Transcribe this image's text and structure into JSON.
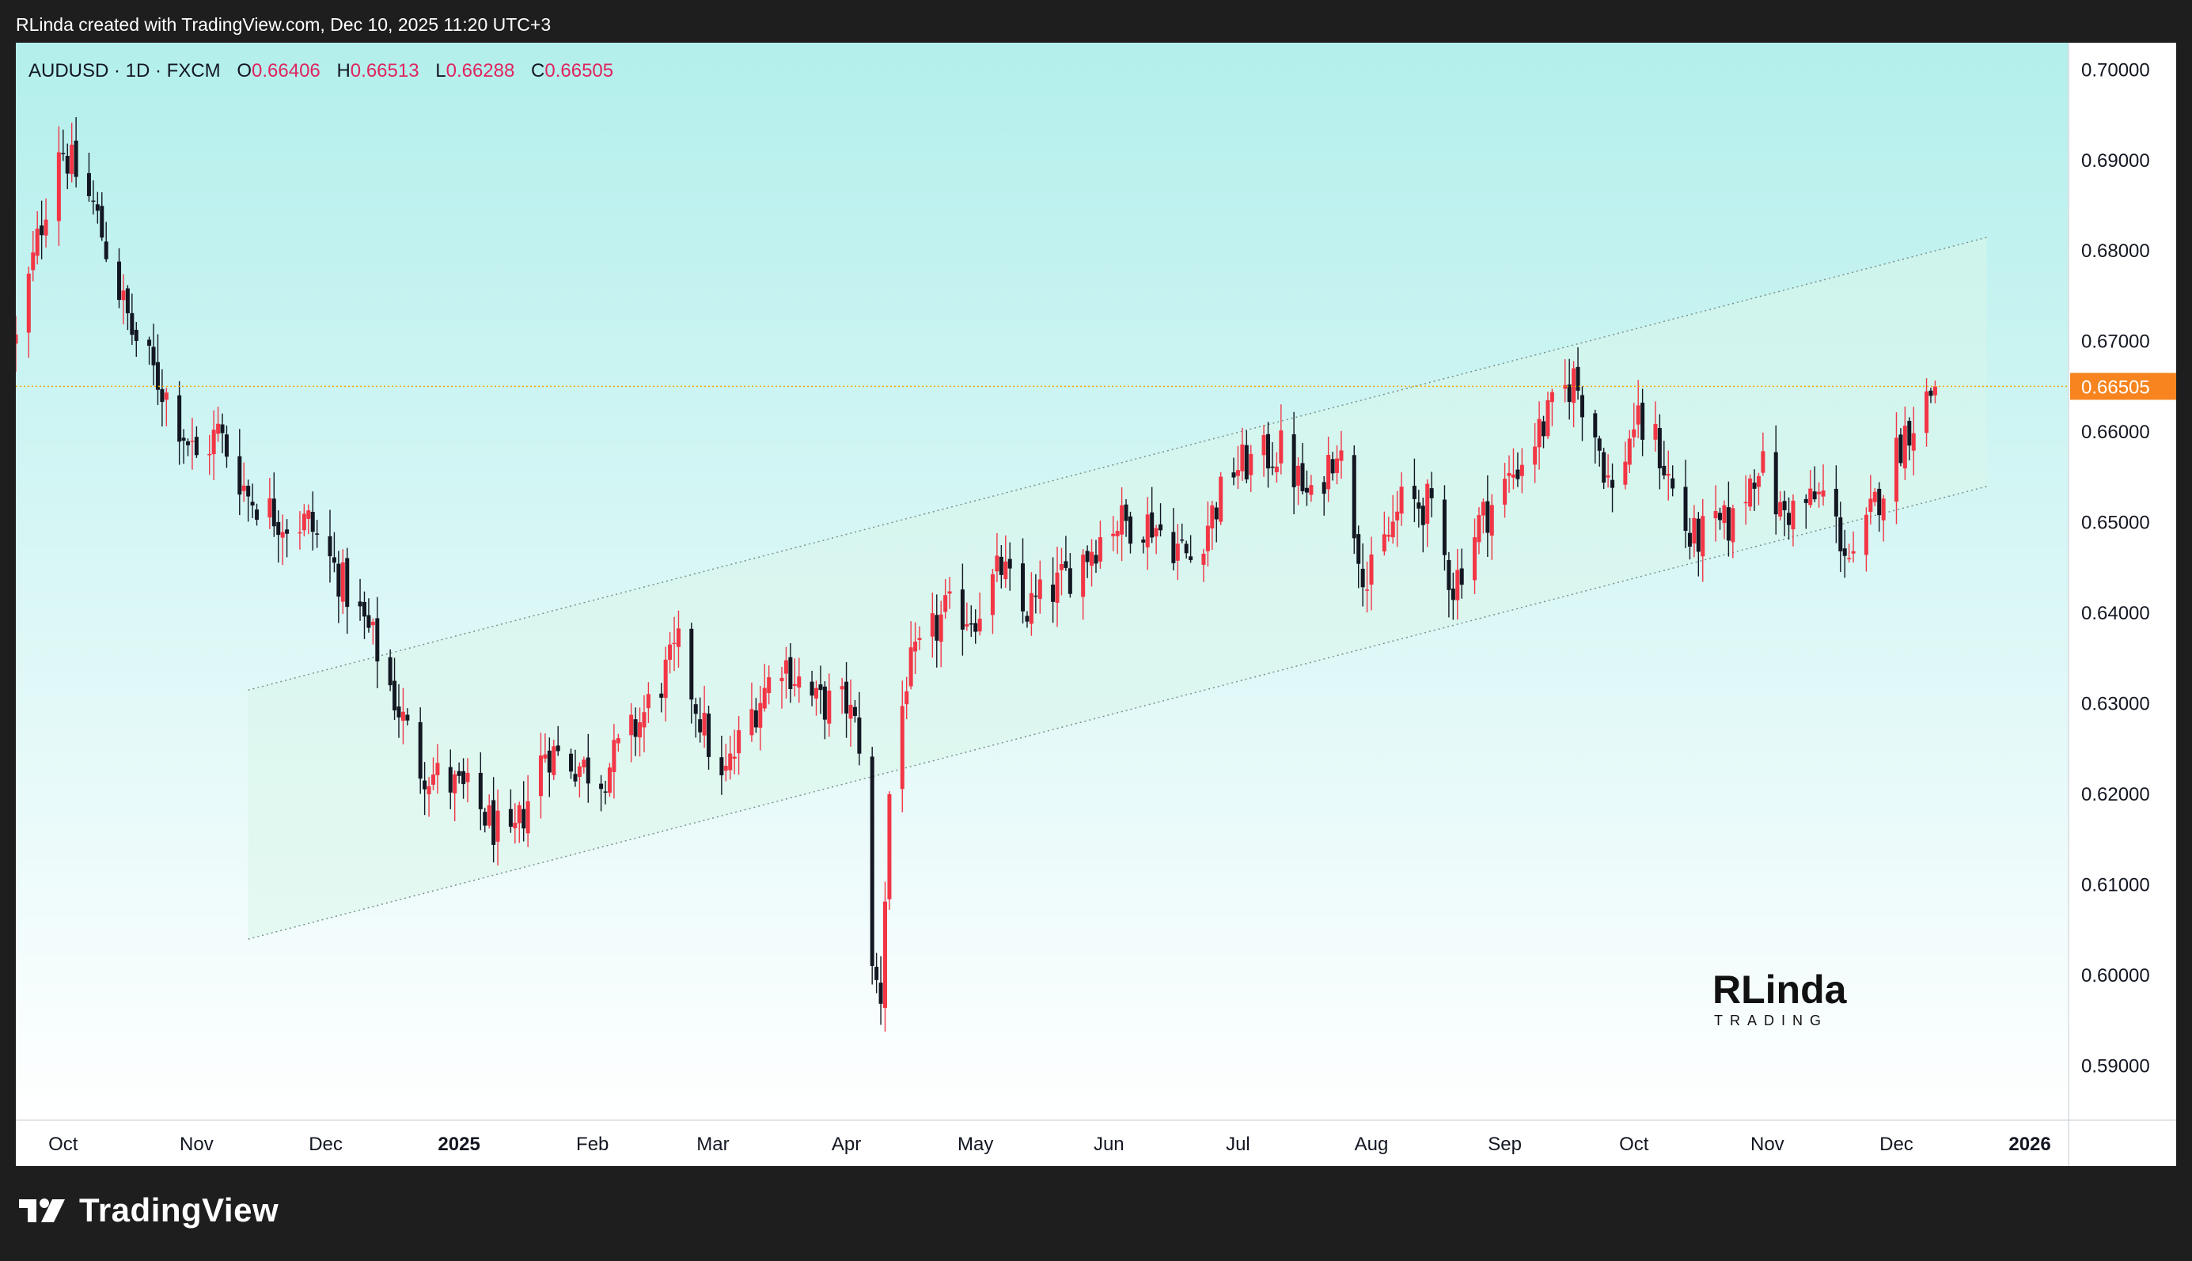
{
  "header": {
    "caption": "RLinda created with TradingView.com, Dec 10, 2025 11:20 UTC+3"
  },
  "legend": {
    "symbol": "AUDUSD · 1D · FXCM",
    "open_label": "O",
    "open_value": "0.66406",
    "high_label": "H",
    "high_value": "0.66513",
    "low_label": "L",
    "low_value": "0.66288",
    "close_label": "C",
    "close_value": "0.66505"
  },
  "footer": {
    "brand": "TradingView"
  },
  "watermark": {
    "line1": "RLinda",
    "line2": "TRADING"
  },
  "colors": {
    "up_candle": "#f23645",
    "down_candle": "#131722",
    "price_line": "#f7a600",
    "price_label_bg": "#f7841f",
    "legend_values": "#e0245e",
    "background_top": "#b3efec",
    "background_bottom": "#ffffff",
    "channel_fill": "#d9f5ea"
  },
  "chart_data": {
    "type": "candlestick",
    "symbol": "AUDUSD",
    "timeframe": "1D",
    "source": "FXCM",
    "y_axis": {
      "range": [
        0.584,
        0.703
      ],
      "ticks": [
        "0.70000",
        "0.69000",
        "0.68000",
        "0.67000",
        "0.66000",
        "0.65000",
        "0.64000",
        "0.63000",
        "0.62000",
        "0.61000",
        "0.60000",
        "0.59000"
      ]
    },
    "x_axis": {
      "range": [
        "2024-09-20",
        "2026-01-10"
      ],
      "ticks": [
        {
          "label": "Oct",
          "date": "2024-10-01",
          "bold": false
        },
        {
          "label": "Nov",
          "date": "2024-11-01",
          "bold": false
        },
        {
          "label": "Dec",
          "date": "2024-12-01",
          "bold": false
        },
        {
          "label": "2025",
          "date": "2025-01-01",
          "bold": true
        },
        {
          "label": "Feb",
          "date": "2025-02-01",
          "bold": false
        },
        {
          "label": "Mar",
          "date": "2025-03-01",
          "bold": false
        },
        {
          "label": "Apr",
          "date": "2025-04-01",
          "bold": false
        },
        {
          "label": "May",
          "date": "2025-05-01",
          "bold": false
        },
        {
          "label": "Jun",
          "date": "2025-06-01",
          "bold": false
        },
        {
          "label": "Jul",
          "date": "2025-07-01",
          "bold": false
        },
        {
          "label": "Aug",
          "date": "2025-08-01",
          "bold": false
        },
        {
          "label": "Sep",
          "date": "2025-09-01",
          "bold": false
        },
        {
          "label": "Oct",
          "date": "2025-10-01",
          "bold": false
        },
        {
          "label": "Nov",
          "date": "2025-11-01",
          "bold": false
        },
        {
          "label": "Dec",
          "date": "2025-12-01",
          "bold": false
        },
        {
          "label": "2026",
          "date": "2026-01-01",
          "bold": true
        }
      ]
    },
    "last_price": {
      "value": 0.66505,
      "label": "0.66505"
    },
    "channel": {
      "upper": [
        [
          "2024-11-13",
          0.6315
        ],
        [
          "2025-12-22",
          0.6815
        ]
      ],
      "lower": [
        [
          "2024-11-13",
          0.604
        ],
        [
          "2025-12-22",
          0.654
        ]
      ]
    },
    "path_keypoints": [
      [
        "2024-09-20",
        0.67
      ],
      [
        "2024-09-30",
        0.692
      ],
      [
        "2024-10-08",
        0.685
      ],
      [
        "2024-10-17",
        0.671
      ],
      [
        "2024-10-25",
        0.664
      ],
      [
        "2024-11-01",
        0.657
      ],
      [
        "2024-11-06",
        0.66
      ],
      [
        "2024-11-13",
        0.653
      ],
      [
        "2024-11-22",
        0.65
      ],
      [
        "2024-11-27",
        0.65
      ],
      [
        "2024-12-03",
        0.645
      ],
      [
        "2024-12-12",
        0.637
      ],
      [
        "2024-12-23",
        0.623
      ],
      [
        "2025-01-03",
        0.62
      ],
      [
        "2025-01-13",
        0.614
      ],
      [
        "2025-01-21",
        0.625
      ],
      [
        "2025-02-03",
        0.622
      ],
      [
        "2025-02-12",
        0.628
      ],
      [
        "2025-02-21",
        0.636
      ],
      [
        "2025-03-03",
        0.621
      ],
      [
        "2025-03-10",
        0.629
      ],
      [
        "2025-03-17",
        0.635
      ],
      [
        "2025-03-25",
        0.63
      ],
      [
        "2025-04-01",
        0.63
      ],
      [
        "2025-04-04",
        0.626
      ],
      [
        "2025-04-07",
        0.6
      ],
      [
        "2025-04-09",
        0.598
      ],
      [
        "2025-04-11",
        0.62
      ],
      [
        "2025-04-15",
        0.633
      ],
      [
        "2025-04-24",
        0.64
      ],
      [
        "2025-05-01",
        0.64
      ],
      [
        "2025-05-07",
        0.645
      ],
      [
        "2025-05-12",
        0.64
      ],
      [
        "2025-05-20",
        0.643
      ],
      [
        "2025-06-02",
        0.65
      ],
      [
        "2025-06-11",
        0.65
      ],
      [
        "2025-06-20",
        0.646
      ],
      [
        "2025-06-30",
        0.656
      ],
      [
        "2025-07-11",
        0.658
      ],
      [
        "2025-07-18",
        0.652
      ],
      [
        "2025-07-24",
        0.659
      ],
      [
        "2025-07-31",
        0.643
      ],
      [
        "2025-08-08",
        0.652
      ],
      [
        "2025-08-14",
        0.652
      ],
      [
        "2025-08-20",
        0.643
      ],
      [
        "2025-08-26",
        0.65
      ],
      [
        "2025-09-01",
        0.654
      ],
      [
        "2025-09-09",
        0.66
      ],
      [
        "2025-09-17",
        0.666
      ],
      [
        "2025-09-22",
        0.66
      ],
      [
        "2025-09-26",
        0.653
      ],
      [
        "2025-10-01",
        0.661
      ],
      [
        "2025-10-06",
        0.659
      ],
      [
        "2025-10-14",
        0.648
      ],
      [
        "2025-10-24",
        0.65
      ],
      [
        "2025-10-30",
        0.657
      ],
      [
        "2025-11-04",
        0.651
      ],
      [
        "2025-11-10",
        0.652
      ],
      [
        "2025-11-14",
        0.653
      ],
      [
        "2025-11-21",
        0.645
      ],
      [
        "2025-11-26",
        0.652
      ],
      [
        "2025-12-03",
        0.66
      ],
      [
        "2025-12-10",
        0.66505
      ]
    ]
  }
}
